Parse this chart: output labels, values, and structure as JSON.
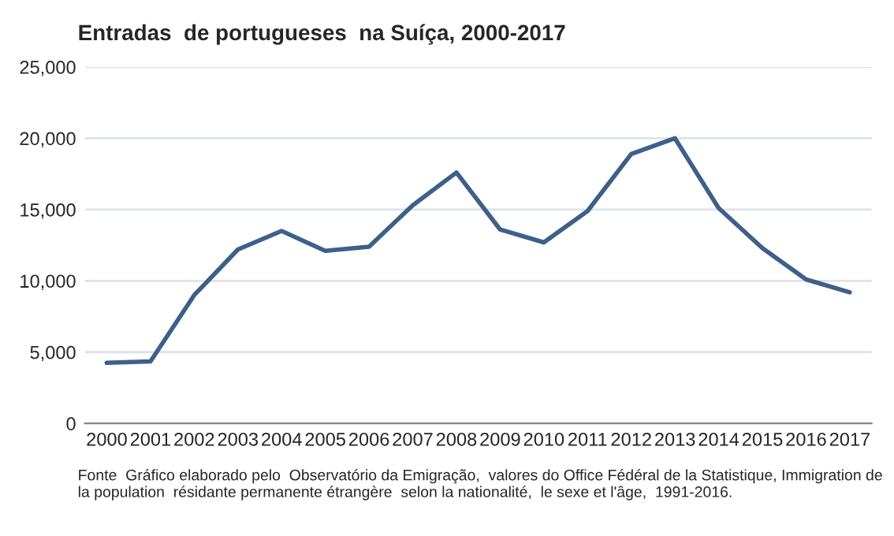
{
  "chart_data": {
    "type": "line",
    "title": "Entradas  de portugueses  na Suíça, 2000-2017",
    "categories": [
      "2000",
      "2001",
      "2002",
      "2003",
      "2004",
      "2005",
      "2006",
      "2007",
      "2008",
      "2009",
      "2010",
      "2011",
      "2012",
      "2013",
      "2014",
      "2015",
      "2016",
      "2017"
    ],
    "series": [
      {
        "color": "#3e5f8a",
        "values": [
          4250,
          4350,
          9000,
          12200,
          13500,
          12100,
          12400,
          15300,
          17600,
          13600,
          12700,
          14900,
          18900,
          20000,
          15100,
          12300,
          10100,
          9200
        ]
      }
    ],
    "ylim": [
      0,
      25000
    ],
    "yticks": [
      0,
      {
        "value": 5000,
        "label": "5,000"
      },
      {
        "value": 10000,
        "label": "10,000"
      },
      {
        "value": 15000,
        "label": "15,000"
      },
      {
        "value": 20000,
        "label": "20,000"
      },
      {
        "value": 25000,
        "label": "25,000"
      }
    ],
    "grid": "y",
    "annotations": [
      "Fonte  Gráfico elaborado pelo  Observatório da Emigração,  valores do Office Fédéral de la Statistique, Immigration de la population  résidante permanente étrangère  selon la nationalité,  le sexe et l'âge,  1991-2016."
    ]
  }
}
